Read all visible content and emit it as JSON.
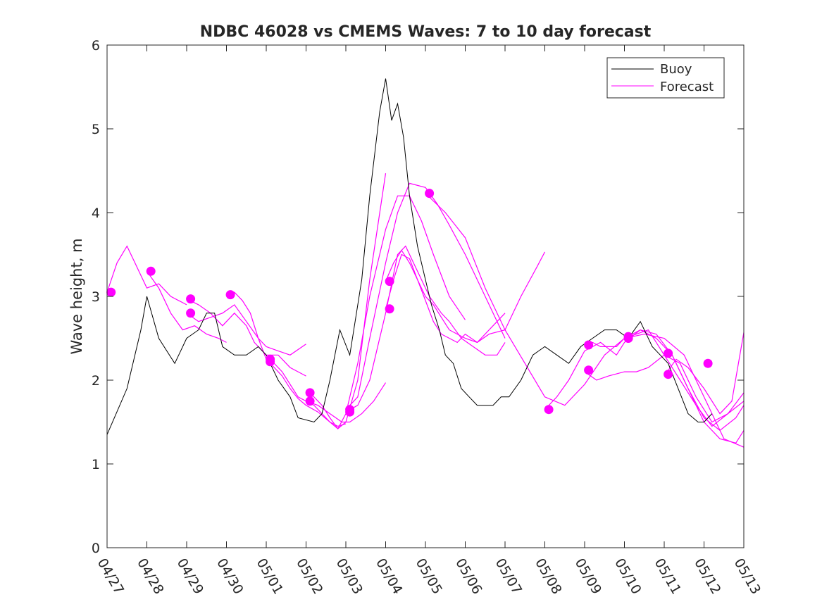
{
  "chart_data": {
    "type": "line",
    "title": "NDBC 46028 vs CMEMS Waves: 7 to 10 day forecast",
    "xlabel": "",
    "ylabel": "Wave height, m",
    "xlim": [
      "04/27",
      "05/13"
    ],
    "ylim": [
      0,
      6
    ],
    "x_ticks": [
      "04/27",
      "04/28",
      "04/29",
      "04/30",
      "05/01",
      "05/02",
      "05/03",
      "05/04",
      "05/05",
      "05/06",
      "05/07",
      "05/08",
      "05/09",
      "05/10",
      "05/11",
      "05/12",
      "05/13"
    ],
    "y_ticks": [
      "0",
      "1",
      "2",
      "3",
      "4",
      "5",
      "6"
    ],
    "x_units": "days since 04/27 00:00",
    "grid": false,
    "legend_position": "top-right",
    "colors": {
      "buoy": "#000000",
      "forecast": "#ff00ff",
      "axis": "#262626"
    },
    "series": [
      {
        "name": "Buoy",
        "style": "thin-line",
        "x": [
          0,
          0.5,
          0.85,
          1.0,
          1.3,
          1.7,
          2.0,
          2.3,
          2.5,
          2.7,
          2.9,
          3.2,
          3.5,
          3.8,
          4.0,
          4.3,
          4.6,
          4.8,
          5.2,
          5.4,
          5.6,
          5.85,
          6.1,
          6.4,
          6.6,
          6.85,
          7.0,
          7.15,
          7.3,
          7.45,
          7.6,
          7.8,
          8.0,
          8.15,
          8.35,
          8.5,
          8.7,
          8.9,
          9.1,
          9.3,
          9.5,
          9.7,
          9.9,
          10.1,
          10.4,
          10.7,
          11.0,
          11.3,
          11.6,
          11.9,
          12.2,
          12.5,
          12.8,
          13.1,
          13.4,
          13.7,
          13.9,
          14.1,
          14.35,
          14.6,
          14.85,
          15.0,
          15.2
        ],
        "y": [
          1.35,
          1.9,
          2.6,
          3.0,
          2.5,
          2.2,
          2.5,
          2.6,
          2.8,
          2.8,
          2.4,
          2.3,
          2.3,
          2.4,
          2.3,
          2.0,
          1.8,
          1.55,
          1.5,
          1.6,
          2.0,
          2.6,
          2.3,
          3.2,
          4.2,
          5.2,
          5.6,
          5.1,
          5.3,
          4.9,
          4.2,
          3.6,
          3.2,
          2.9,
          2.6,
          2.3,
          2.2,
          1.9,
          1.8,
          1.7,
          1.7,
          1.7,
          1.8,
          1.8,
          2.0,
          2.3,
          2.4,
          2.3,
          2.2,
          2.4,
          2.5,
          2.6,
          2.6,
          2.5,
          2.7,
          2.4,
          2.3,
          2.2,
          1.9,
          1.6,
          1.5,
          1.5,
          1.6
        ]
      },
      {
        "name": "Forecast",
        "style": "thin-line",
        "segments": [
          {
            "x": [
              0.0,
              0.25,
              0.5,
              0.7,
              1.0,
              1.3,
              1.6,
              2.0
            ],
            "y": [
              3.05,
              3.4,
              3.6,
              3.4,
              3.1,
              3.15,
              3.0,
              2.9
            ]
          },
          {
            "x": [
              1.0,
              1.3,
              1.6,
              1.9,
              2.2,
              2.5,
              2.8,
              3.0
            ],
            "y": [
              3.3,
              3.1,
              2.8,
              2.6,
              2.65,
              2.55,
              2.5,
              2.45
            ]
          },
          {
            "x": [
              2.0,
              2.3,
              2.6,
              2.9,
              3.2,
              3.5,
              3.7,
              4.0,
              4.3,
              4.6,
              5.0
            ],
            "y": [
              2.97,
              2.9,
              2.8,
              2.65,
              2.8,
              2.65,
              2.45,
              2.3,
              2.3,
              2.15,
              2.05
            ]
          },
          {
            "x": [
              2.0,
              2.3,
              2.6,
              2.9,
              3.2,
              3.5,
              3.8,
              4.0,
              4.3,
              4.6,
              5.0
            ],
            "y": [
              2.8,
              2.7,
              2.75,
              2.8,
              2.9,
              2.7,
              2.5,
              2.4,
              2.35,
              2.3,
              2.43
            ]
          },
          {
            "x": [
              3.0,
              3.2,
              3.4,
              3.6,
              3.8,
              4.0,
              4.2,
              4.4,
              4.6,
              4.8,
              5.0,
              5.3,
              5.6,
              5.8,
              6.0
            ],
            "y": [
              3.0,
              3.05,
              2.95,
              2.8,
              2.5,
              2.25,
              2.15,
              2.05,
              1.9,
              1.78,
              1.7,
              1.62,
              1.5,
              1.45,
              1.48
            ]
          },
          {
            "x": [
              4.0,
              4.2,
              4.4,
              4.6,
              4.8,
              5.0,
              5.3,
              5.6,
              5.9,
              6.1,
              6.4,
              6.7,
              7.0
            ],
            "y": [
              2.25,
              2.2,
              2.1,
              1.95,
              1.8,
              1.75,
              1.7,
              1.6,
              1.5,
              1.5,
              1.6,
              1.75,
              1.97
            ]
          },
          {
            "x": [
              5.0,
              5.2,
              5.4,
              5.6,
              5.8,
              6.0,
              6.3,
              6.6,
              7.0
            ],
            "y": [
              1.85,
              1.8,
              1.7,
              1.55,
              1.42,
              1.5,
              2.0,
              3.2,
              4.47
            ]
          },
          {
            "x": [
              5.0,
              5.2,
              5.4,
              5.6,
              5.8,
              6.0,
              6.3,
              6.6,
              7.0,
              7.3,
              7.6,
              7.9,
              8.2,
              8.6,
              9.0
            ],
            "y": [
              1.75,
              1.7,
              1.6,
              1.5,
              1.42,
              1.6,
              2.2,
              3.0,
              3.8,
              4.2,
              4.2,
              3.9,
              3.5,
              3.0,
              2.72
            ]
          },
          {
            "x": [
              6.0,
              6.3,
              6.6,
              7.0,
              7.3,
              7.6,
              8.0,
              8.3,
              8.6,
              9.0,
              9.5,
              10.0
            ],
            "y": [
              1.65,
              1.8,
              2.5,
              3.4,
              4.0,
              4.35,
              4.3,
              4.1,
              3.85,
              3.5,
              3.0,
              2.5
            ]
          },
          {
            "x": [
              6.0,
              6.3,
              6.6,
              7.0,
              7.3,
              7.5,
              7.8,
              8.1,
              8.4,
              8.6,
              8.9,
              9.2,
              9.5,
              9.8,
              10.0
            ],
            "y": [
              1.62,
              1.7,
              2.0,
              2.8,
              3.5,
              3.6,
              3.3,
              3.0,
              2.8,
              2.7,
              2.5,
              2.4,
              2.3,
              2.3,
              2.45
            ]
          },
          {
            "x": [
              7.0,
              7.2,
              7.4,
              7.6,
              7.8,
              8.0,
              8.2,
              8.4,
              8.6,
              8.8,
              9.0,
              9.3,
              9.6,
              10.0,
              10.4,
              10.8,
              11.0
            ],
            "y": [
              3.18,
              3.4,
              3.55,
              3.4,
              3.2,
              3.0,
              2.9,
              2.75,
              2.6,
              2.55,
              2.5,
              2.45,
              2.55,
              2.6,
              3.0,
              3.35,
              3.53
            ]
          },
          {
            "x": [
              7.0,
              7.2,
              7.4,
              7.6,
              7.8,
              8.0,
              8.2,
              8.4,
              8.6,
              8.8,
              9.0,
              9.3,
              9.6,
              10.0
            ],
            "y": [
              2.85,
              3.2,
              3.5,
              3.45,
              3.2,
              2.95,
              2.7,
              2.55,
              2.5,
              2.45,
              2.55,
              2.45,
              2.6,
              2.8
            ]
          },
          {
            "x": [
              8.0,
              8.5,
              9.0,
              9.5,
              10.0,
              10.5,
              11.0,
              11.5,
              12.0,
              12.5,
              13.0,
              13.5,
              14.0,
              14.5,
              15.0,
              15.5,
              16.0
            ],
            "y": [
              4.23,
              4.0,
              3.7,
              3.1,
              2.6,
              2.2,
              1.8,
              1.7,
              1.95,
              2.3,
              2.5,
              2.55,
              2.5,
              2.3,
              1.8,
              1.3,
              1.2
            ]
          },
          {
            "x": [
              11.0,
              11.3,
              11.6,
              12.0,
              12.4,
              12.8,
              13.0,
              13.4,
              13.8,
              14.2,
              14.6,
              15.0,
              15.4,
              15.8,
              16.0
            ],
            "y": [
              1.65,
              1.8,
              2.0,
              2.35,
              2.45,
              2.3,
              2.45,
              2.6,
              2.5,
              2.3,
              1.9,
              1.5,
              1.3,
              1.25,
              1.4
            ]
          },
          {
            "x": [
              12.0,
              12.2,
              12.4,
              12.8,
              13.0,
              13.4,
              13.8,
              14.2,
              14.6,
              15.0,
              15.4,
              15.8,
              16.0
            ],
            "y": [
              2.4,
              2.45,
              2.4,
              2.4,
              2.5,
              2.6,
              2.55,
              2.3,
              1.9,
              1.55,
              1.4,
              1.55,
              1.7
            ]
          },
          {
            "x": [
              12.0,
              12.3,
              12.6,
              13.0,
              13.3,
              13.6,
              14.0,
              14.4,
              14.8,
              15.2,
              15.6,
              16.0
            ],
            "y": [
              2.1,
              2.0,
              2.05,
              2.1,
              2.1,
              2.15,
              2.3,
              2.2,
              1.8,
              1.5,
              1.6,
              1.85
            ]
          },
          {
            "x": [
              13.0,
              13.3,
              13.6,
              14.0,
              14.4,
              14.8,
              15.2,
              15.6,
              16.0
            ],
            "y": [
              2.5,
              2.55,
              2.6,
              2.3,
              2.0,
              1.7,
              1.45,
              1.6,
              1.75
            ]
          },
          {
            "x": [
              14.0,
              14.3,
              14.6,
              15.0,
              15.4,
              15.7,
              16.0
            ],
            "y": [
              2.05,
              2.25,
              2.15,
              1.9,
              1.6,
              1.75,
              2.57
            ]
          }
        ],
        "markers": {
          "x": [
            0.1,
            1.1,
            2.1,
            2.1,
            3.1,
            4.1,
            4.1,
            5.1,
            5.1,
            6.1,
            6.1,
            7.1,
            7.1,
            8.1,
            11.1,
            12.1,
            12.1,
            13.1,
            13.1,
            14.1,
            14.1,
            15.1
          ],
          "y": [
            3.05,
            3.3,
            2.97,
            2.8,
            3.02,
            2.25,
            2.22,
            1.85,
            1.75,
            1.65,
            1.62,
            3.18,
            2.85,
            4.23,
            1.65,
            2.42,
            2.12,
            2.52,
            2.5,
            2.32,
            2.07,
            2.2
          ]
        }
      }
    ]
  }
}
